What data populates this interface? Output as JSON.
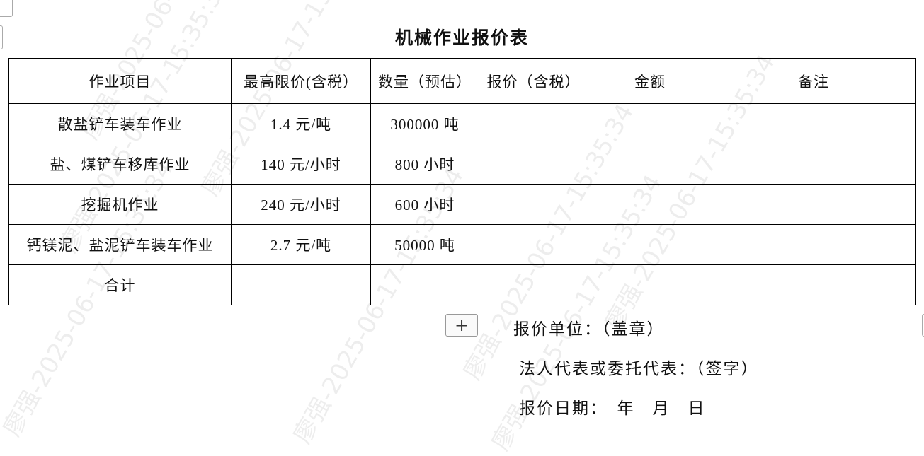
{
  "title": "机械作业报价表",
  "table": {
    "headers": [
      "作业项目",
      "最高限价(含税）",
      "数量（预估）",
      "报价（含税）",
      "金额",
      "备注"
    ],
    "rows": [
      [
        "散盐铲车装车作业",
        "1.4 元/吨",
        "300000 吨",
        "",
        "",
        ""
      ],
      [
        "盐、煤铲车移库作业",
        "140 元/小时",
        "800 小时",
        "",
        "",
        ""
      ],
      [
        "挖掘机作业",
        "240 元/小时",
        "600 小时",
        "",
        "",
        ""
      ],
      [
        "钙镁泥、盐泥铲车装车作业",
        "2.7 元/吨",
        "50000 吨",
        "",
        "",
        ""
      ],
      [
        "合计",
        "",
        "",
        "",
        "",
        ""
      ]
    ]
  },
  "footer": {
    "unit": "报价单位：（盖章）",
    "representative": "法人代表或委托代表：（签字）",
    "date": "报价日期：　年　月　日"
  },
  "add_button": {
    "label": "+",
    "icon": "plus-icon"
  },
  "watermark": "廖强-2025-06-17-15:35:34"
}
